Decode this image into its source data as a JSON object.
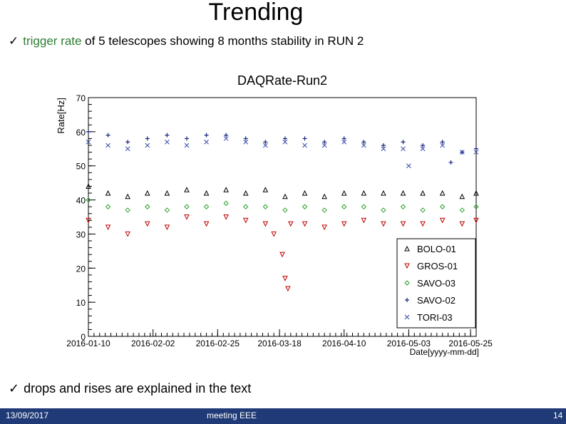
{
  "slide": {
    "title": "Trending",
    "bullet1_colored": "trigger rate",
    "bullet1_rest": " of 5 telescopes showing 8 months stability in RUN 2",
    "bullet2": "drops and rises are explained in the text",
    "check_glyph": "✓"
  },
  "footer": {
    "date": "13/09/2017",
    "center": "meeting EEE",
    "page": "14",
    "bg_color": "#1f3a76"
  },
  "chart_data": {
    "type": "scatter",
    "title": "DAQRate-Run2",
    "xlabel": "Date[yyyy-mm-dd]",
    "ylabel": "Rate[Hz]",
    "ylim": [
      0,
      70
    ],
    "yticks": [
      0,
      10,
      20,
      30,
      40,
      50,
      60,
      70
    ],
    "xticks": [
      "2016-01-10",
      "2016-02-02",
      "2016-02-25",
      "2016-03-18",
      "2016-04-10",
      "2016-05-03",
      "2016-05-25"
    ],
    "xlim": [
      "2016-01-10",
      "2016-05-27"
    ],
    "grid": false,
    "legend_position": "bottom-right",
    "series": [
      {
        "name": "BOLO-01",
        "marker": "triangle-up",
        "color": "#000000",
        "x": [
          "2016-01-10",
          "2016-01-17",
          "2016-01-24",
          "2016-01-31",
          "2016-02-07",
          "2016-02-14",
          "2016-02-21",
          "2016-02-28",
          "2016-03-06",
          "2016-03-13",
          "2016-03-20",
          "2016-03-27",
          "2016-04-03",
          "2016-04-10",
          "2016-04-17",
          "2016-04-24",
          "2016-05-01",
          "2016-05-08",
          "2016-05-15",
          "2016-05-22",
          "2016-05-27"
        ],
        "values": [
          44,
          42,
          41,
          42,
          42,
          43,
          42,
          43,
          42,
          43,
          41,
          42,
          41,
          42,
          42,
          42,
          42,
          42,
          42,
          41,
          42
        ]
      },
      {
        "name": "GROS-01",
        "marker": "triangle-down",
        "color": "#c00000",
        "x": [
          "2016-01-10",
          "2016-01-17",
          "2016-01-24",
          "2016-01-31",
          "2016-02-07",
          "2016-02-14",
          "2016-02-21",
          "2016-02-28",
          "2016-03-06",
          "2016-03-13",
          "2016-03-16",
          "2016-03-19",
          "2016-03-20",
          "2016-03-21",
          "2016-03-22",
          "2016-03-27",
          "2016-04-03",
          "2016-04-10",
          "2016-04-17",
          "2016-04-24",
          "2016-05-01",
          "2016-05-08",
          "2016-05-15",
          "2016-05-22",
          "2016-05-27"
        ],
        "values": [
          34,
          32,
          30,
          33,
          32,
          35,
          33,
          35,
          34,
          33,
          30,
          24,
          17,
          14,
          33,
          33,
          32,
          33,
          34,
          33,
          33,
          33,
          34,
          33,
          34
        ]
      },
      {
        "name": "SAVO-03",
        "marker": "diamond",
        "color": "#2ca02c",
        "x": [
          "2016-01-10",
          "2016-01-17",
          "2016-01-24",
          "2016-01-31",
          "2016-02-07",
          "2016-02-14",
          "2016-02-21",
          "2016-02-28",
          "2016-03-06",
          "2016-03-13",
          "2016-03-20",
          "2016-03-27",
          "2016-04-03",
          "2016-04-10",
          "2016-04-17",
          "2016-04-24",
          "2016-05-01",
          "2016-05-08",
          "2016-05-15",
          "2016-05-22",
          "2016-05-27"
        ],
        "values": [
          40,
          38,
          37,
          38,
          37,
          38,
          38,
          39,
          38,
          38,
          37,
          38,
          37,
          38,
          38,
          37,
          38,
          37,
          38,
          37,
          38
        ]
      },
      {
        "name": "SAVO-02",
        "marker": "plus",
        "color": "#1a237e",
        "x": [
          "2016-01-10",
          "2016-01-17",
          "2016-01-24",
          "2016-01-31",
          "2016-02-07",
          "2016-02-14",
          "2016-02-21",
          "2016-02-28",
          "2016-03-06",
          "2016-03-13",
          "2016-03-20",
          "2016-03-27",
          "2016-04-03",
          "2016-04-10",
          "2016-04-17",
          "2016-04-24",
          "2016-05-01",
          "2016-05-08",
          "2016-05-15",
          "2016-05-18",
          "2016-05-22",
          "2016-05-27"
        ],
        "values": [
          60,
          59,
          57,
          58,
          59,
          58,
          59,
          59,
          58,
          57,
          58,
          58,
          57,
          58,
          57,
          56,
          57,
          56,
          57,
          51,
          54,
          55
        ]
      },
      {
        "name": "TORI-03",
        "marker": "cross",
        "color": "#3949ab",
        "x": [
          "2016-01-10",
          "2016-01-17",
          "2016-01-24",
          "2016-01-31",
          "2016-02-07",
          "2016-02-14",
          "2016-02-21",
          "2016-02-28",
          "2016-03-06",
          "2016-03-13",
          "2016-03-20",
          "2016-03-27",
          "2016-04-03",
          "2016-04-10",
          "2016-04-17",
          "2016-04-24",
          "2016-05-01",
          "2016-05-03",
          "2016-05-08",
          "2016-05-15",
          "2016-05-22",
          "2016-05-27"
        ],
        "values": [
          57,
          56,
          55,
          56,
          57,
          56,
          57,
          58,
          57,
          56,
          57,
          56,
          56,
          57,
          56,
          55,
          55,
          50,
          55,
          56,
          54,
          54
        ]
      }
    ]
  }
}
